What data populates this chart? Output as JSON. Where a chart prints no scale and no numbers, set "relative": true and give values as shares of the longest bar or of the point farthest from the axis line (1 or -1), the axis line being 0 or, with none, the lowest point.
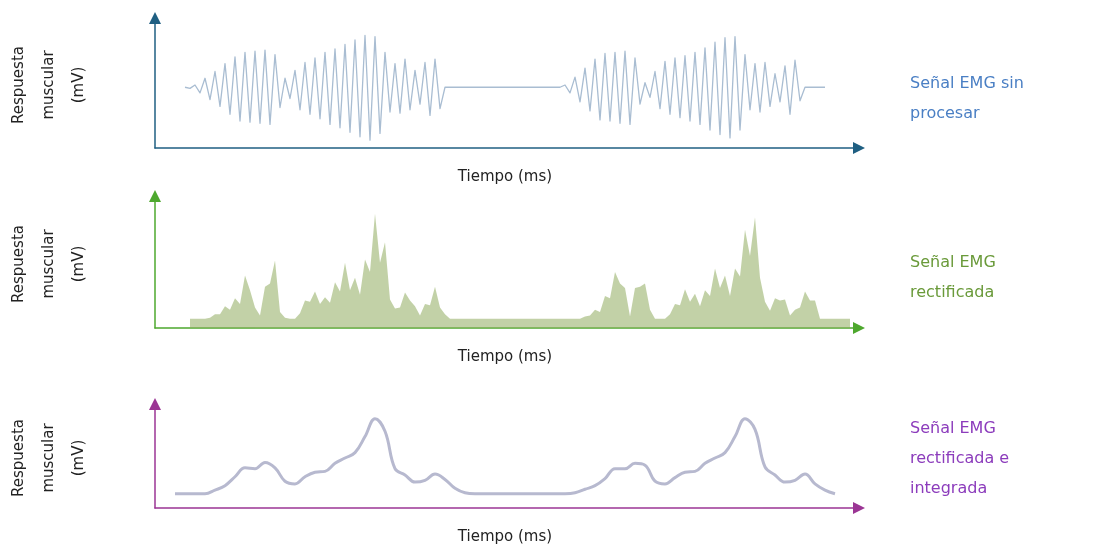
{
  "chart_data": [
    {
      "type": "line",
      "relative": true,
      "xlabel": "Tiempo (ms)",
      "ylabel": "Respuesta muscular (mV)",
      "grid": false,
      "legend": "right",
      "categories": [
        null,
        null,
        null,
        null,
        null,
        null,
        null,
        null,
        null,
        null,
        null,
        null,
        null,
        null,
        null,
        null,
        null,
        null,
        null,
        null,
        null,
        null,
        null,
        null,
        null,
        null,
        null,
        null,
        null,
        null,
        null,
        null,
        null,
        null,
        null,
        null,
        null,
        null,
        null,
        null,
        null,
        null,
        null,
        null,
        null,
        null,
        null,
        null,
        null,
        null,
        null,
        null,
        null,
        null,
        null,
        null,
        null,
        null,
        null,
        null,
        null,
        null,
        null,
        null,
        null,
        null,
        null,
        null,
        null,
        null,
        null,
        null,
        null,
        null,
        null,
        null,
        null,
        null,
        null,
        null,
        null,
        null,
        null,
        null,
        null,
        null,
        null,
        null,
        null,
        null,
        null,
        null,
        null,
        null,
        null,
        null,
        null,
        null,
        null,
        null,
        null,
        null,
        null,
        null,
        null,
        null,
        null,
        null,
        null,
        null,
        null,
        null,
        null,
        null,
        null,
        null,
        null,
        null,
        null,
        null,
        null,
        null,
        null,
        null,
        null,
        null,
        null,
        null,
        null,
        null,
        null,
        null,
        null,
        null,
        null,
        null,
        null,
        null,
        null,
        null,
        null
      ],
      "series": [
        {
          "name": "Señal EMG sin procesar",
          "color": "#a9bdd2",
          "values": [
            null,
            null,
            null,
            null,
            null,
            null,
            0.54,
            0.53,
            0.56,
            0.49,
            0.62,
            0.43,
            0.68,
            0.37,
            0.75,
            0.3,
            0.81,
            0.24,
            0.85,
            0.23,
            0.86,
            0.22,
            0.87,
            0.21,
            0.83,
            0.36,
            0.62,
            0.44,
            0.69,
            0.34,
            0.76,
            0.3,
            0.8,
            0.26,
            0.85,
            0.21,
            0.88,
            0.18,
            0.92,
            0.14,
            0.96,
            0.1,
            1.0,
            0.07,
            0.99,
            0.13,
            0.85,
            0.32,
            0.75,
            0.31,
            0.79,
            0.34,
            0.69,
            0.39,
            0.76,
            0.29,
            0.79,
            0.35,
            0.54,
            0.54,
            0.54,
            0.54,
            0.54,
            0.54,
            0.54,
            0.54,
            0.54,
            0.54,
            0.54,
            0.54,
            0.54,
            0.54,
            0.54,
            0.54,
            0.54,
            0.54,
            0.54,
            0.54,
            0.54,
            0.54,
            0.54,
            0.54,
            0.56,
            0.49,
            0.63,
            0.41,
            0.71,
            0.33,
            0.79,
            0.25,
            0.84,
            0.24,
            0.85,
            0.22,
            0.86,
            0.21,
            0.8,
            0.39,
            0.58,
            0.45,
            0.68,
            0.35,
            0.77,
            0.3,
            0.8,
            0.27,
            0.82,
            0.24,
            0.85,
            0.21,
            0.89,
            0.16,
            0.94,
            0.12,
            0.98,
            0.09,
            0.99,
            0.16,
            0.83,
            0.34,
            0.75,
            0.32,
            0.76,
            0.37,
            0.66,
            0.41,
            0.73,
            0.3,
            0.78,
            0.42,
            0.54,
            0.54,
            0.54,
            0.54,
            0.54,
            null,
            null,
            null,
            null,
            null,
            null
          ]
        }
      ]
    },
    {
      "type": "area",
      "relative": true,
      "xlabel": "Tiempo (ms)",
      "ylabel": "Respuesta muscular (mV)",
      "grid": false,
      "legend": "right",
      "categories": [
        null,
        null,
        null,
        null,
        null,
        null,
        null,
        null,
        null,
        null,
        null,
        null,
        null,
        null,
        null,
        null,
        null,
        null,
        null,
        null,
        null,
        null,
        null,
        null,
        null,
        null,
        null,
        null,
        null,
        null,
        null,
        null,
        null,
        null,
        null,
        null,
        null,
        null,
        null,
        null,
        null,
        null,
        null,
        null,
        null,
        null,
        null,
        null,
        null,
        null,
        null,
        null,
        null,
        null,
        null,
        null,
        null,
        null,
        null,
        null,
        null,
        null,
        null,
        null,
        null,
        null,
        null,
        null,
        null,
        null,
        null,
        null,
        null,
        null,
        null,
        null,
        null,
        null,
        null,
        null,
        null,
        null,
        null,
        null,
        null,
        null,
        null,
        null,
        null,
        null,
        null,
        null,
        null,
        null,
        null,
        null,
        null,
        null,
        null,
        null,
        null,
        null,
        null,
        null,
        null,
        null,
        null,
        null,
        null,
        null,
        null,
        null,
        null,
        null,
        null,
        null,
        null,
        null,
        null,
        null,
        null,
        null,
        null,
        null,
        null,
        null,
        null,
        null,
        null,
        null,
        null,
        null,
        null,
        null,
        null,
        null,
        null,
        null,
        null,
        null,
        null
      ],
      "series": [
        {
          "name": "Señal EMG rectificada",
          "color": "#8fac5e",
          "values": [
            null,
            null,
            null,
            null,
            null,
            null,
            null,
            0.08,
            0.08,
            0.08,
            0.08,
            0.09,
            0.12,
            0.12,
            0.19,
            0.16,
            0.26,
            0.21,
            0.46,
            0.33,
            0.18,
            0.11,
            0.36,
            0.39,
            0.59,
            0.14,
            0.09,
            0.08,
            0.08,
            0.13,
            0.24,
            0.23,
            0.32,
            0.21,
            0.27,
            0.22,
            0.4,
            0.32,
            0.57,
            0.33,
            0.44,
            0.29,
            0.6,
            0.49,
            1.0,
            0.57,
            0.75,
            0.25,
            0.17,
            0.18,
            0.31,
            0.24,
            0.19,
            0.11,
            0.21,
            0.2,
            0.36,
            0.18,
            0.12,
            0.08,
            0.08,
            0.08,
            0.08,
            0.08,
            0.08,
            0.08,
            0.08,
            0.08,
            0.08,
            0.08,
            0.08,
            0.08,
            0.08,
            0.08,
            0.08,
            0.08,
            0.08,
            0.08,
            0.08,
            0.08,
            0.08,
            0.08,
            0.08,
            0.08,
            0.08,
            0.08,
            0.1,
            0.11,
            0.16,
            0.14,
            0.28,
            0.26,
            0.49,
            0.39,
            0.35,
            0.1,
            0.35,
            0.36,
            0.39,
            0.16,
            0.08,
            0.08,
            0.08,
            0.12,
            0.21,
            0.2,
            0.34,
            0.23,
            0.3,
            0.19,
            0.33,
            0.28,
            0.52,
            0.35,
            0.46,
            0.28,
            0.52,
            0.45,
            0.86,
            0.63,
            0.97,
            0.44,
            0.23,
            0.15,
            0.26,
            0.24,
            0.25,
            0.11,
            0.16,
            0.18,
            0.32,
            0.24,
            0.24,
            0.08,
            0.08,
            0.08,
            0.08,
            0.08,
            0.08,
            0.08,
            null
          ]
        }
      ]
    },
    {
      "type": "line",
      "relative": true,
      "xlabel": "Tiempo (ms)",
      "ylabel": "Respuesta muscular (mV)",
      "grid": false,
      "legend": "right",
      "categories": [
        null,
        null,
        null,
        null,
        null,
        null,
        null,
        null,
        null,
        null,
        null,
        null,
        null,
        null,
        null,
        null,
        null,
        null,
        null,
        null,
        null,
        null,
        null,
        null,
        null,
        null,
        null,
        null,
        null,
        null,
        null,
        null,
        null,
        null,
        null,
        null,
        null,
        null,
        null,
        null,
        null,
        null,
        null,
        null,
        null,
        null,
        null,
        null,
        null,
        null,
        null,
        null,
        null,
        null,
        null,
        null,
        null,
        null,
        null,
        null,
        null,
        null,
        null,
        null,
        null,
        null,
        null,
        null,
        null,
        null,
        null
      ],
      "series": [
        {
          "name": "Señal EMG rectificada e integrada",
          "color": "#b7b9cf",
          "values": [
            null,
            null,
            0.16,
            0.16,
            0.16,
            0.16,
            0.2,
            0.25,
            0.35,
            0.45,
            0.44,
            0.51,
            0.45,
            0.3,
            0.27,
            0.35,
            0.4,
            0.41,
            0.5,
            0.56,
            0.62,
            0.8,
            1.0,
            0.86,
            0.44,
            0.37,
            0.29,
            0.31,
            0.38,
            0.32,
            0.22,
            0.17,
            0.16,
            0.16,
            0.16,
            0.16,
            0.16,
            0.16,
            0.16,
            0.16,
            0.16,
            0.16,
            0.17,
            0.21,
            0.25,
            0.33,
            0.44,
            0.44,
            0.5,
            0.48,
            0.3,
            0.27,
            0.34,
            0.4,
            0.41,
            0.5,
            0.56,
            0.62,
            0.8,
            1.0,
            0.88,
            0.46,
            0.37,
            0.29,
            0.31,
            0.38,
            0.27,
            0.2,
            0.16,
            null,
            null
          ]
        }
      ]
    }
  ]
}
